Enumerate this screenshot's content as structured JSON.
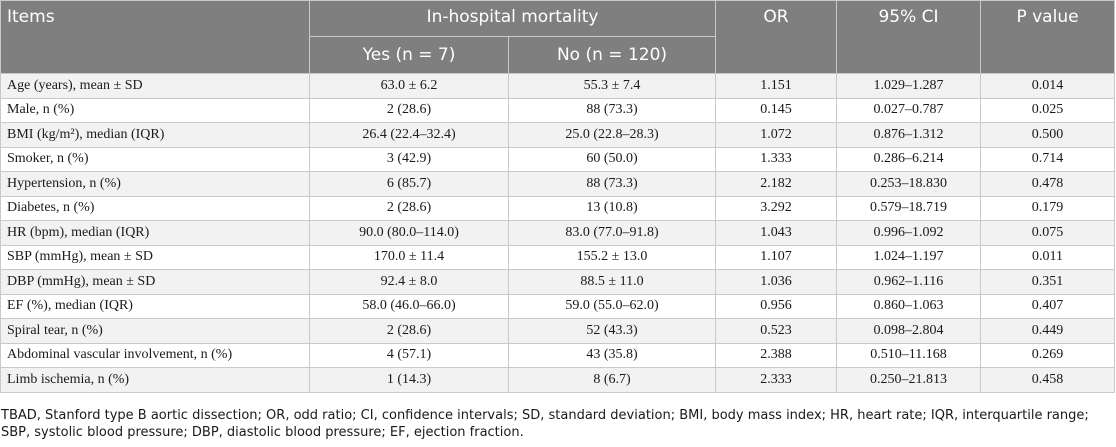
{
  "header": {
    "items": "Items",
    "group": "In-hospital mortality",
    "yes": "Yes (n = 7)",
    "no": "No (n = 120)",
    "or": "OR",
    "ci": "95% CI",
    "p": "P value"
  },
  "rows": [
    {
      "item": "Age (years), mean ± SD",
      "yes": "63.0 ± 6.2",
      "no": "55.3 ± 7.4",
      "or": "1.151",
      "ci": "1.029–1.287",
      "p": "0.014"
    },
    {
      "item": "Male, n (%)",
      "yes": "2 (28.6)",
      "no": "88 (73.3)",
      "or": "0.145",
      "ci": "0.027–0.787",
      "p": "0.025"
    },
    {
      "item": "BMI (kg/m²), median (IQR)",
      "yes": "26.4 (22.4–32.4)",
      "no": "25.0 (22.8–28.3)",
      "or": "1.072",
      "ci": "0.876–1.312",
      "p": "0.500"
    },
    {
      "item": "Smoker, n (%)",
      "yes": "3 (42.9)",
      "no": "60 (50.0)",
      "or": "1.333",
      "ci": "0.286–6.214",
      "p": "0.714"
    },
    {
      "item": "Hypertension, n (%)",
      "yes": "6 (85.7)",
      "no": "88 (73.3)",
      "or": "2.182",
      "ci": "0.253–18.830",
      "p": "0.478"
    },
    {
      "item": "Diabetes, n (%)",
      "yes": "2 (28.6)",
      "no": "13 (10.8)",
      "or": "3.292",
      "ci": "0.579–18.719",
      "p": "0.179"
    },
    {
      "item": "HR (bpm), median (IQR)",
      "yes": "90.0 (80.0–114.0)",
      "no": "83.0 (77.0–91.8)",
      "or": "1.043",
      "ci": "0.996–1.092",
      "p": "0.075"
    },
    {
      "item": "SBP (mmHg), mean ± SD",
      "yes": "170.0 ± 11.4",
      "no": "155.2 ± 13.0",
      "or": "1.107",
      "ci": "1.024–1.197",
      "p": "0.011"
    },
    {
      "item": "DBP (mmHg), mean ± SD",
      "yes": "92.4 ± 8.0",
      "no": "88.5 ± 11.0",
      "or": "1.036",
      "ci": "0.962–1.116",
      "p": "0.351"
    },
    {
      "item": "EF (%), median (IQR)",
      "yes": "58.0 (46.0–66.0)",
      "no": "59.0 (55.0–62.0)",
      "or": "0.956",
      "ci": "0.860–1.063",
      "p": "0.407"
    },
    {
      "item": "Spiral tear, n (%)",
      "yes": "2 (28.6)",
      "no": "52 (43.3)",
      "or": "0.523",
      "ci": "0.098–2.804",
      "p": "0.449"
    },
    {
      "item": "Abdominal vascular involvement, n (%)",
      "yes": "4 (57.1)",
      "no": "43 (35.8)",
      "or": "2.388",
      "ci": "0.510–11.168",
      "p": "0.269"
    },
    {
      "item": "Limb ischemia, n (%)",
      "yes": "1 (14.3)",
      "no": "8 (6.7)",
      "or": "2.333",
      "ci": "0.250–21.813",
      "p": "0.458"
    }
  ],
  "footnote": "TBAD, Stanford type B aortic dissection; OR, odd ratio; CI, confidence intervals; SD, standard deviation; BMI, body mass index; HR, heart rate; IQR, interquartile range; SBP, systolic blood pressure; DBP, diastolic blood pressure; EF, ejection fraction."
}
